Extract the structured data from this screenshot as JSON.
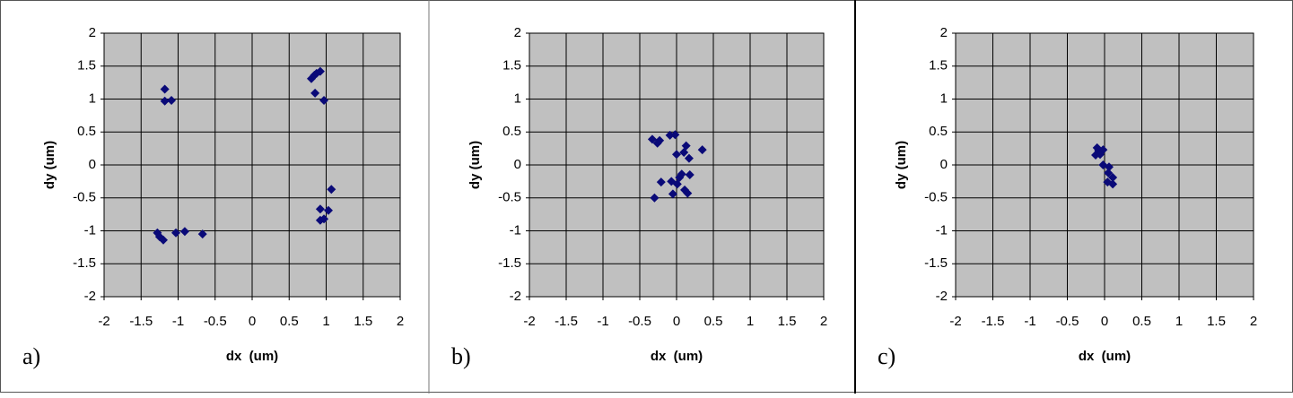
{
  "chart_data": [
    {
      "type": "scatter",
      "panel_label": "a)",
      "xlabel": "dx  (um)",
      "ylabel": "dy (um)",
      "color": "#0a0a78",
      "grid": true,
      "xlim": [
        -2,
        2
      ],
      "ylim": [
        -2,
        2
      ],
      "xticks": [
        -2,
        -1.5,
        -1,
        -0.5,
        0,
        0.5,
        1,
        1.5,
        2
      ],
      "yticks": [
        -2,
        -1.5,
        -1,
        -0.5,
        0,
        0.5,
        1,
        1.5,
        2
      ],
      "x": [
        -1.18,
        -1.18,
        -1.09,
        0.8,
        0.84,
        0.87,
        0.92,
        0.85,
        0.97,
        1.07,
        0.92,
        1.03,
        0.92,
        0.97,
        -1.28,
        -1.25,
        -1.2,
        -1.03,
        -0.91,
        -0.67
      ],
      "values": [
        1.15,
        0.97,
        0.98,
        1.31,
        1.36,
        1.39,
        1.42,
        1.09,
        0.98,
        -0.37,
        -0.67,
        -0.69,
        -0.84,
        -0.82,
        -1.03,
        -1.09,
        -1.14,
        -1.03,
        -1.01,
        -1.05
      ]
    },
    {
      "type": "scatter",
      "panel_label": "b)",
      "xlabel": "dx  (um)",
      "ylabel": "dy (um)",
      "color": "#0a0a78",
      "grid": true,
      "xlim": [
        -2,
        2
      ],
      "ylim": [
        -2,
        2
      ],
      "xticks": [
        -2,
        -1.5,
        -1,
        -0.5,
        0,
        0.5,
        1,
        1.5,
        2
      ],
      "yticks": [
        -2,
        -1.5,
        -1,
        -0.5,
        0,
        0.5,
        1,
        1.5,
        2
      ],
      "x": [
        -0.33,
        -0.26,
        -0.23,
        -0.09,
        -0.02,
        0.35,
        0.13,
        0.1,
        0,
        0.17,
        -0.21,
        -0.3,
        -0.07,
        -0.05,
        0.04,
        0.07,
        0.18,
        0.11,
        0.15,
        0.01
      ],
      "values": [
        0.39,
        0.33,
        0.37,
        0.45,
        0.46,
        0.23,
        0.29,
        0.19,
        0.16,
        0.1,
        -0.26,
        -0.5,
        -0.25,
        -0.44,
        -0.19,
        -0.14,
        -0.15,
        -0.38,
        -0.43,
        -0.29
      ]
    },
    {
      "type": "scatter",
      "panel_label": "c)",
      "xlabel": "dx  (um)",
      "ylabel": "dy (um)",
      "color": "#0a0a78",
      "grid": true,
      "xlim": [
        -2,
        2
      ],
      "ylim": [
        -2,
        2
      ],
      "xticks": [
        -2,
        -1.5,
        -1,
        -0.5,
        0,
        0.5,
        1,
        1.5,
        2
      ],
      "yticks": [
        -2,
        -1.5,
        -1,
        -0.5,
        0,
        0.5,
        1,
        1.5,
        2
      ],
      "x": [
        -0.08,
        -0.02,
        -0.12,
        -0.06,
        -0.1,
        -0.02,
        0.06,
        0.05,
        0.11,
        0.04,
        0.11
      ],
      "values": [
        0.22,
        0.23,
        0.15,
        0.16,
        0.26,
        0,
        -0.03,
        -0.12,
        -0.19,
        -0.26,
        -0.29
      ]
    }
  ]
}
